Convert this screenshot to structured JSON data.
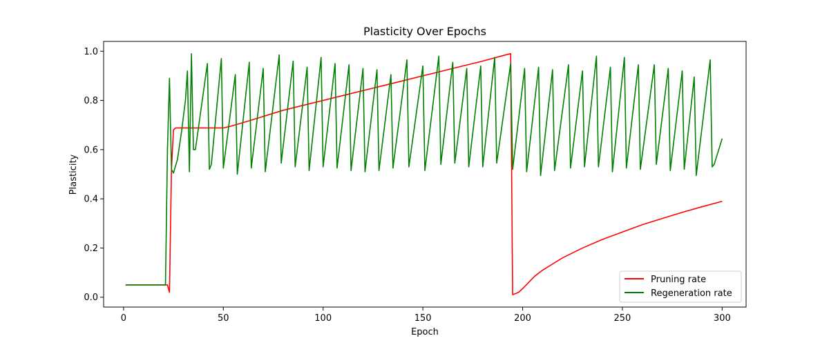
{
  "chart_data": {
    "type": "line",
    "title": "Plasticity Over Epochs",
    "xlabel": "Epoch",
    "ylabel": "Plasticity",
    "xlim": [
      -10,
      312
    ],
    "ylim": [
      -0.04,
      1.04
    ],
    "xticks": [
      0,
      50,
      100,
      150,
      200,
      250,
      300
    ],
    "yticks": [
      0.0,
      0.2,
      0.4,
      0.6,
      0.8,
      1.0
    ],
    "xtick_labels": [
      "0",
      "50",
      "100",
      "150",
      "200",
      "250",
      "300"
    ],
    "ytick_labels": [
      "0.0",
      "0.2",
      "0.4",
      "0.6",
      "0.8",
      "1.0"
    ],
    "grid": false,
    "legend_position": "lower-right",
    "series": [
      {
        "name": "Pruning rate",
        "color": "#ff0000",
        "points": [
          [
            1,
            0.05
          ],
          [
            21,
            0.05
          ],
          [
            22,
            0.05
          ],
          [
            23,
            0.02
          ],
          [
            24,
            0.52
          ],
          [
            25,
            0.68
          ],
          [
            26,
            0.688
          ],
          [
            30,
            0.688
          ],
          [
            40,
            0.688
          ],
          [
            50,
            0.688
          ],
          [
            55,
            0.698
          ],
          [
            60,
            0.71
          ],
          [
            70,
            0.735
          ],
          [
            80,
            0.76
          ],
          [
            90,
            0.78
          ],
          [
            100,
            0.8
          ],
          [
            110,
            0.82
          ],
          [
            120,
            0.84
          ],
          [
            130,
            0.86
          ],
          [
            140,
            0.88
          ],
          [
            150,
            0.9
          ],
          [
            160,
            0.92
          ],
          [
            170,
            0.94
          ],
          [
            180,
            0.96
          ],
          [
            190,
            0.982
          ],
          [
            194,
            0.99
          ],
          [
            195,
            0.01
          ],
          [
            198,
            0.02
          ],
          [
            200,
            0.035
          ],
          [
            203,
            0.06
          ],
          [
            206,
            0.085
          ],
          [
            210,
            0.11
          ],
          [
            215,
            0.135
          ],
          [
            220,
            0.16
          ],
          [
            230,
            0.2
          ],
          [
            240,
            0.235
          ],
          [
            250,
            0.265
          ],
          [
            260,
            0.295
          ],
          [
            270,
            0.32
          ],
          [
            280,
            0.345
          ],
          [
            290,
            0.368
          ],
          [
            300,
            0.39
          ]
        ]
      },
      {
        "name": "Regeneration rate",
        "color": "#008000",
        "points": [
          [
            1,
            0.05
          ],
          [
            21,
            0.05
          ],
          [
            22,
            0.6
          ],
          [
            23,
            0.89
          ],
          [
            24,
            0.52
          ],
          [
            25,
            0.505
          ],
          [
            27,
            0.56
          ],
          [
            29,
            0.67
          ],
          [
            31,
            0.8
          ],
          [
            32,
            0.92
          ],
          [
            33,
            0.51
          ],
          [
            34,
            0.99
          ],
          [
            35,
            0.6
          ],
          [
            36,
            0.6
          ],
          [
            42,
            0.95
          ],
          [
            43,
            0.52
          ],
          [
            44,
            0.54
          ],
          [
            49,
            0.97
          ],
          [
            50,
            0.525
          ],
          [
            56,
            0.905
          ],
          [
            57,
            0.5
          ],
          [
            63,
            0.955
          ],
          [
            64,
            0.525
          ],
          [
            70,
            0.93
          ],
          [
            71,
            0.51
          ],
          [
            78,
            0.985
          ],
          [
            79,
            0.545
          ],
          [
            85,
            0.96
          ],
          [
            86,
            0.53
          ],
          [
            92,
            0.935
          ],
          [
            93,
            0.515
          ],
          [
            99,
            0.975
          ],
          [
            100,
            0.53
          ],
          [
            106,
            0.95
          ],
          [
            107,
            0.525
          ],
          [
            113,
            0.945
          ],
          [
            114,
            0.515
          ],
          [
            120,
            0.93
          ],
          [
            121,
            0.51
          ],
          [
            127,
            0.925
          ],
          [
            128,
            0.515
          ],
          [
            134,
            0.905
          ],
          [
            135,
            0.525
          ],
          [
            142,
            0.965
          ],
          [
            143,
            0.53
          ],
          [
            150,
            0.94
          ],
          [
            151,
            0.515
          ],
          [
            158,
            0.98
          ],
          [
            159,
            0.54
          ],
          [
            165,
            0.955
          ],
          [
            166,
            0.545
          ],
          [
            172,
            0.93
          ],
          [
            173,
            0.53
          ],
          [
            179,
            0.94
          ],
          [
            180,
            0.53
          ],
          [
            186,
            0.975
          ],
          [
            187,
            0.545
          ],
          [
            194,
            0.95
          ],
          [
            195,
            0.52
          ],
          [
            201,
            0.93
          ],
          [
            202,
            0.51
          ],
          [
            208,
            0.935
          ],
          [
            209,
            0.495
          ],
          [
            215,
            0.925
          ],
          [
            216,
            0.515
          ],
          [
            223,
            0.945
          ],
          [
            224,
            0.525
          ],
          [
            230,
            0.92
          ],
          [
            231,
            0.53
          ],
          [
            237,
            0.98
          ],
          [
            238,
            0.53
          ],
          [
            244,
            0.935
          ],
          [
            245,
            0.51
          ],
          [
            251,
            0.975
          ],
          [
            252,
            0.525
          ],
          [
            258,
            0.945
          ],
          [
            259,
            0.52
          ],
          [
            266,
            0.945
          ],
          [
            267,
            0.54
          ],
          [
            273,
            0.93
          ],
          [
            274,
            0.515
          ],
          [
            280,
            0.92
          ],
          [
            281,
            0.52
          ],
          [
            286,
            0.895
          ],
          [
            287,
            0.495
          ],
          [
            294,
            0.965
          ],
          [
            295,
            0.53
          ],
          [
            296,
            0.54
          ],
          [
            300,
            0.645
          ]
        ]
      }
    ]
  }
}
